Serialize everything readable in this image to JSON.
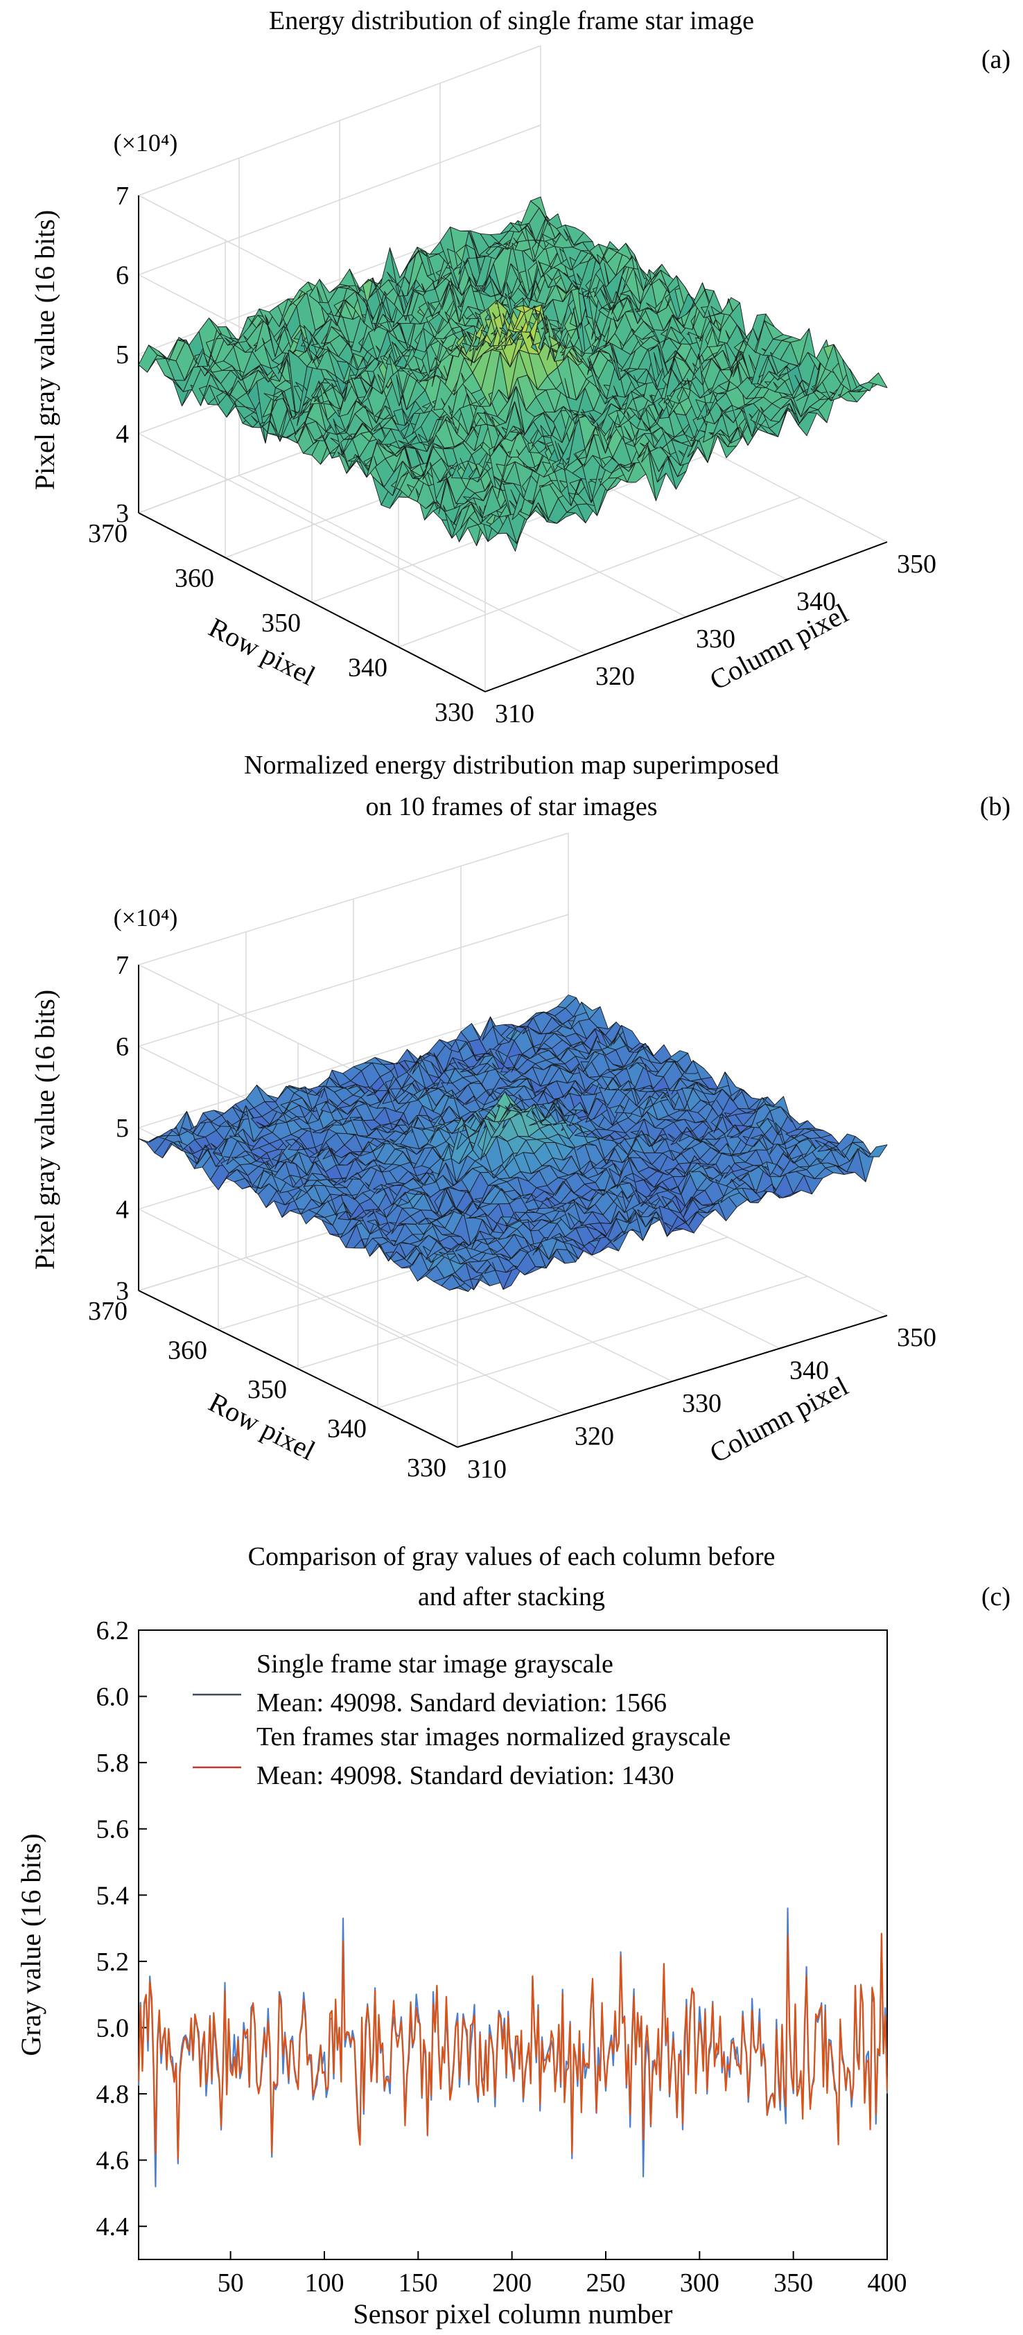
{
  "chart_data": [
    {
      "type": "surface",
      "panel_label": "(a)",
      "title": "Energy distribution of single frame star image",
      "zlabel": "Pixel gray value (16 bits)",
      "zscale_label": "(×10⁴)",
      "xlabel": "Column pixel",
      "ylabel": "Row pixel",
      "xlim": [
        310,
        350
      ],
      "ylim": [
        330,
        370
      ],
      "zlim": [
        3,
        7
      ],
      "xticks": [
        "310",
        "320",
        "330",
        "340",
        "350"
      ],
      "yticks": [
        "330",
        "340",
        "350",
        "360",
        "370"
      ],
      "zticks": [
        "3",
        "4",
        "5",
        "6",
        "7"
      ],
      "surface": {
        "grid": "41x41 pixels (columns 310–350, rows 330–370)",
        "base_level": 4.9,
        "noise_std": 0.16,
        "peak_center": [
          330,
          350
        ],
        "peak_amplitude": 0.7,
        "colormap": "green-teal"
      }
    },
    {
      "type": "surface",
      "panel_label": "(b)",
      "title_lines": [
        "Normalized energy distribution map superimposed",
        "on 10 frames of star images"
      ],
      "zlabel": "Pixel gray value (16 bits)",
      "zscale_label": "(×10⁴)",
      "xlabel": "Column pixel",
      "ylabel": "Row pixel",
      "xlim": [
        310,
        350
      ],
      "ylim": [
        330,
        370
      ],
      "zlim": [
        3,
        7
      ],
      "xticks": [
        "310",
        "320",
        "330",
        "340",
        "350"
      ],
      "yticks": [
        "330",
        "340",
        "350",
        "360",
        "370"
      ],
      "zticks": [
        "3",
        "4",
        "5",
        "6",
        "7"
      ],
      "surface": {
        "grid": "41x41 pixels (columns 310–350, rows 330–370)",
        "base_level": 4.9,
        "noise_std": 0.09,
        "peak_center": [
          330,
          350
        ],
        "peak_amplitude": 0.45,
        "colormap": "blue"
      }
    },
    {
      "type": "line",
      "panel_label": "(c)",
      "title_lines": [
        "Comparison of gray values of each column before",
        "and after stacking"
      ],
      "xlabel": "Sensor pixel column number",
      "ylabel": "Gray value (16 bits)",
      "xlim": [
        1,
        400
      ],
      "ylim": [
        4.3,
        6.2
      ],
      "xticks": [
        50,
        100,
        150,
        200,
        250,
        300,
        350,
        400
      ],
      "yticks": [
        "4.4",
        "4.6",
        "4.8",
        "5.0",
        "5.2",
        "5.4",
        "5.6",
        "5.8",
        "6.0",
        "6.2"
      ],
      "legend_position": "top",
      "series": [
        {
          "name": "Single frame star image grayscale",
          "stats": "Mean: 49098. Sandard deviation: 1566",
          "color": "#4a7fcf",
          "legend_color": "#3b4a5a",
          "mean": 4.9098,
          "std": 0.1566
        },
        {
          "name": "Ten frames star images normalized grayscale",
          "stats": "Mean: 49098. Standard deviation: 1430",
          "color": "#d95319",
          "legend_color": "#c0392b",
          "mean": 4.9098,
          "std": 0.143
        }
      ]
    }
  ]
}
